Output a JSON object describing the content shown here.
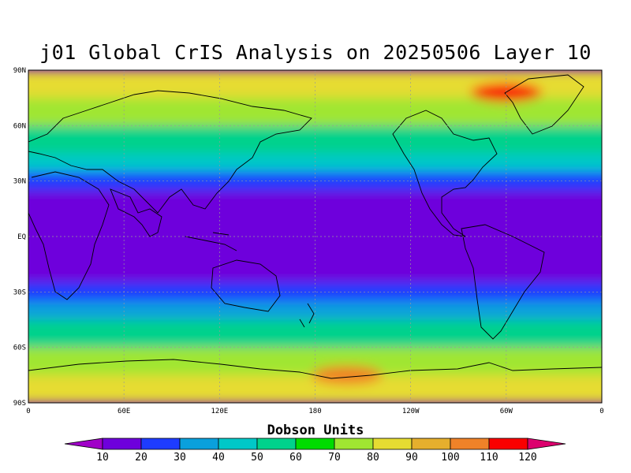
{
  "title": "j01 Global CrIS Analysis on 20250506 Layer 10",
  "colorbar": {
    "title": "Dobson Units",
    "levels": [
      "10",
      "20",
      "30",
      "40",
      "50",
      "60",
      "70",
      "80",
      "90",
      "100",
      "110",
      "120"
    ],
    "colors": [
      "#a000c8",
      "#6e00dc",
      "#1e3cff",
      "#0aa0dc",
      "#00c8c8",
      "#00d28c",
      "#00dc00",
      "#a0e632",
      "#e6dc32",
      "#e6af2d",
      "#f08228",
      "#fa0000",
      "#dc006e"
    ]
  },
  "axes": {
    "lat_labels": [
      "90N",
      "60N",
      "30N",
      "EQ",
      "30S",
      "60S",
      "90S"
    ],
    "lon_labels": [
      "0",
      "60E",
      "120E",
      "180",
      "120W",
      "60W",
      "0"
    ]
  },
  "chart_data": {
    "type": "heatmap",
    "title": "j01 Global CrIS Analysis on 20250506 Layer 10",
    "quantity": "Dobson Units",
    "lat_range": [
      -90,
      90
    ],
    "lon_range": [
      0,
      360
    ],
    "zonal_profile": [
      {
        "lat": 90,
        "value": 85
      },
      {
        "lat": 75,
        "value": 78
      },
      {
        "lat": 60,
        "value": 68
      },
      {
        "lat": 45,
        "value": 50
      },
      {
        "lat": 35,
        "value": 32
      },
      {
        "lat": 25,
        "value": 18
      },
      {
        "lat": 0,
        "value": 15
      },
      {
        "lat": -25,
        "value": 18
      },
      {
        "lat": -35,
        "value": 30
      },
      {
        "lat": -45,
        "value": 45
      },
      {
        "lat": -60,
        "value": 60
      },
      {
        "lat": -75,
        "value": 85
      },
      {
        "lat": -90,
        "value": 90
      }
    ],
    "features": [
      {
        "lon": 300,
        "lat": 78,
        "value": 115
      },
      {
        "lon": 165,
        "lat": 5,
        "value": 10
      },
      {
        "lon": 200,
        "lat": -75,
        "value": 100
      }
    ]
  }
}
